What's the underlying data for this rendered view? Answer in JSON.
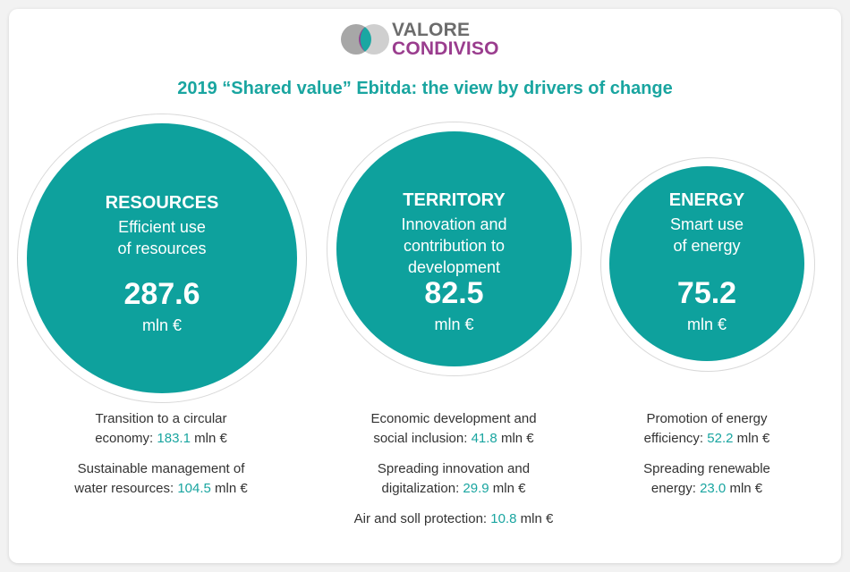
{
  "logo": {
    "line1": "VALORE",
    "line2": "CONDIVISO"
  },
  "title": "2019 “Shared value” Ebitda: the view by drivers of change",
  "colors": {
    "accent": "#0ea19d",
    "title": "#19a5a0",
    "logo_purple": "#9a3d8e",
    "logo_grey": "#6c6c6c"
  },
  "drivers": [
    {
      "name": "RESOURCES",
      "subtitle_lines": [
        "Efficient use",
        "of resources"
      ],
      "value": "287.6",
      "unit": "mln €",
      "items": [
        {
          "text_lines": [
            "Transition to a circular",
            "economy:"
          ],
          "value": "183.1",
          "unit": "mln €"
        },
        {
          "text_lines": [
            "Sustainable management of",
            "water resources:"
          ],
          "value": "104.5",
          "unit": "mln €"
        }
      ]
    },
    {
      "name": "TERRITORY",
      "subtitle_lines": [
        "Innovation and",
        "contribution to",
        "development"
      ],
      "value": "82.5",
      "unit": "mln €",
      "items": [
        {
          "text_lines": [
            "Economic development and",
            "social inclusion:"
          ],
          "value": "41.8",
          "unit": "mln €"
        },
        {
          "text_lines": [
            "Spreading innovation and",
            "digitalization:"
          ],
          "value": "29.9",
          "unit": "mln €"
        },
        {
          "text_lines": [
            "Air and soll protection:"
          ],
          "value": "10.8",
          "unit": "mln €"
        }
      ]
    },
    {
      "name": "ENERGY",
      "subtitle_lines": [
        "Smart use",
        "of energy"
      ],
      "value": "75.2",
      "unit": "mln €",
      "items": [
        {
          "text_lines": [
            "Promotion of energy",
            "efficiency:"
          ],
          "value": "52.2",
          "unit": "mln €"
        },
        {
          "text_lines": [
            "Spreading renewable",
            "energy:"
          ],
          "value": "23.0",
          "unit": "mln €"
        }
      ]
    }
  ]
}
